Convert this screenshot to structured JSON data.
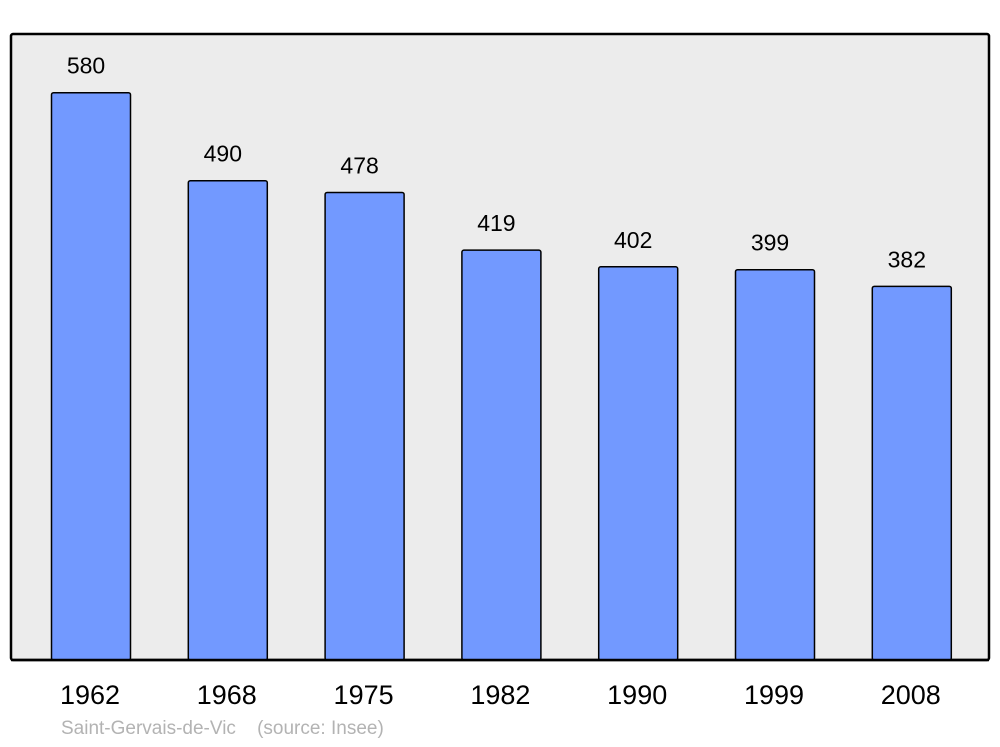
{
  "chart_data": {
    "type": "bar",
    "categories": [
      "1962",
      "1968",
      "1975",
      "1982",
      "1990",
      "1999",
      "2008"
    ],
    "values": [
      580,
      490,
      478,
      419,
      402,
      399,
      382
    ],
    "title": "",
    "xlabel": "",
    "ylabel": "",
    "ylim": [
      0,
      640
    ],
    "grid": false,
    "data_labels": true,
    "colors": {
      "bar": "#7299ff",
      "plot_background": "#ececec",
      "outline": "#000000"
    }
  },
  "caption": {
    "place": "Saint-Gervais-de-Vic",
    "source": "(source: Insee)"
  }
}
